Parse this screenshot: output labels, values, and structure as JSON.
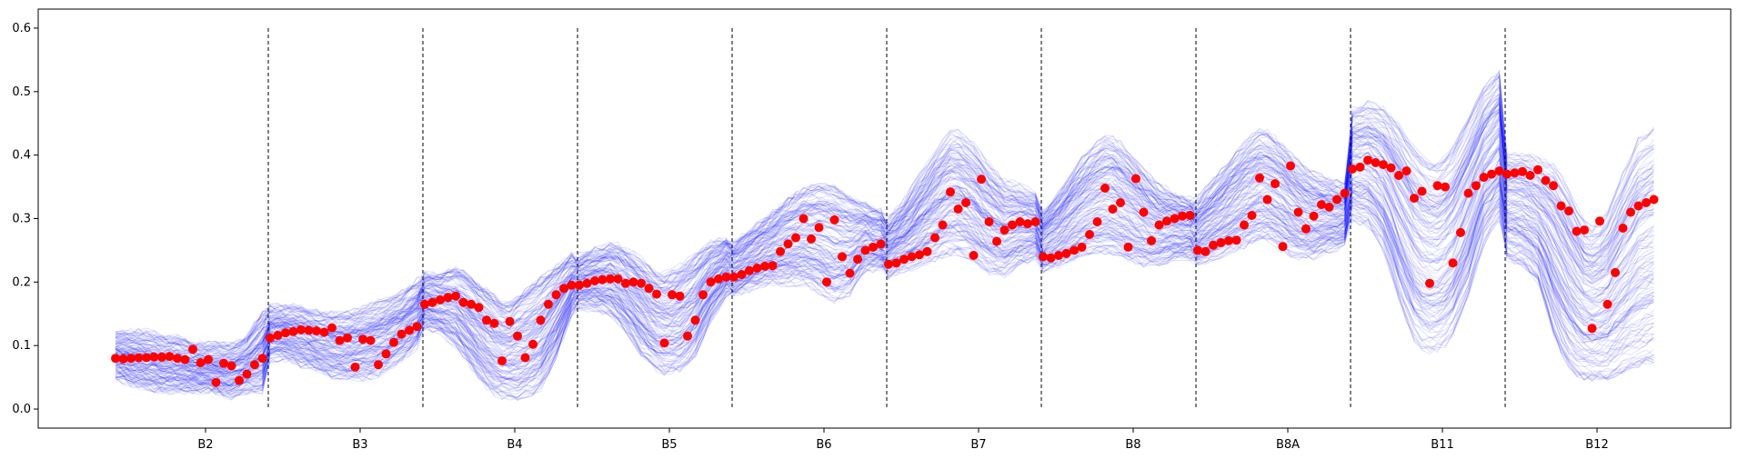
{
  "chart_data": {
    "type": "line",
    "title": "",
    "xlabel": "",
    "ylabel": "",
    "ylim": [
      -0.03,
      0.63
    ],
    "yticks": [
      "0.0",
      "0.1",
      "0.2",
      "0.3",
      "0.4",
      "0.5",
      "0.6"
    ],
    "bands": [
      "B2",
      "B3",
      "B4",
      "B5",
      "B6",
      "B7",
      "B8",
      "B8A",
      "B11",
      "B12"
    ],
    "points_per_band": 20,
    "separators_y": [
      0,
      0.6
    ],
    "grid": false,
    "legend": "none",
    "colors": {
      "ensemble": "#0000ff",
      "observed": "#ff0000",
      "separator": "#000000",
      "axes": "#000000"
    },
    "ensemble": {
      "count": 140,
      "opacity": 0.12,
      "envelope": [
        {
          "band": "B2",
          "lower": [
            0.05,
            0.04,
            0.035,
            0.03,
            0.03,
            0.03,
            0.03,
            0.02,
            0.03,
            0.03
          ],
          "upper": [
            0.12,
            0.12,
            0.12,
            0.11,
            0.11,
            0.1,
            0.1,
            0.1,
            0.11,
            0.15
          ]
        },
        {
          "band": "B3",
          "lower": [
            0.08,
            0.08,
            0.07,
            0.06,
            0.05,
            0.05,
            0.05,
            0.06,
            0.08,
            0.1
          ],
          "upper": [
            0.16,
            0.16,
            0.16,
            0.15,
            0.15,
            0.15,
            0.16,
            0.17,
            0.18,
            0.2
          ]
        },
        {
          "band": "B4",
          "lower": [
            0.13,
            0.12,
            0.1,
            0.06,
            0.03,
            0.02,
            0.02,
            0.03,
            0.08,
            0.15
          ],
          "upper": [
            0.21,
            0.21,
            0.22,
            0.2,
            0.18,
            0.16,
            0.18,
            0.2,
            0.22,
            0.24
          ]
        },
        {
          "band": "B5",
          "lower": [
            0.16,
            0.16,
            0.15,
            0.12,
            0.08,
            0.06,
            0.06,
            0.08,
            0.14,
            0.18
          ],
          "upper": [
            0.24,
            0.25,
            0.26,
            0.25,
            0.23,
            0.21,
            0.22,
            0.24,
            0.26,
            0.27
          ]
        },
        {
          "band": "B6",
          "lower": [
            0.18,
            0.19,
            0.2,
            0.2,
            0.2,
            0.19,
            0.17,
            0.18,
            0.22,
            0.22
          ],
          "upper": [
            0.26,
            0.28,
            0.3,
            0.32,
            0.34,
            0.35,
            0.35,
            0.33,
            0.32,
            0.31
          ]
        },
        {
          "band": "B7",
          "lower": [
            0.21,
            0.22,
            0.23,
            0.24,
            0.25,
            0.24,
            0.22,
            0.21,
            0.23,
            0.24
          ],
          "upper": [
            0.3,
            0.33,
            0.37,
            0.41,
            0.44,
            0.42,
            0.39,
            0.36,
            0.35,
            0.34
          ]
        },
        {
          "band": "B8",
          "lower": [
            0.22,
            0.23,
            0.24,
            0.25,
            0.25,
            0.24,
            0.23,
            0.23,
            0.24,
            0.24
          ],
          "upper": [
            0.31,
            0.34,
            0.38,
            0.41,
            0.43,
            0.41,
            0.38,
            0.35,
            0.34,
            0.33
          ]
        },
        {
          "band": "B8A",
          "lower": [
            0.23,
            0.24,
            0.25,
            0.26,
            0.27,
            0.26,
            0.24,
            0.24,
            0.25,
            0.26
          ],
          "upper": [
            0.33,
            0.36,
            0.39,
            0.42,
            0.44,
            0.42,
            0.39,
            0.37,
            0.36,
            0.35
          ]
        },
        {
          "band": "B11",
          "lower": [
            0.3,
            0.29,
            0.25,
            0.16,
            0.1,
            0.09,
            0.11,
            0.17,
            0.26,
            0.3
          ],
          "upper": [
            0.47,
            0.48,
            0.47,
            0.44,
            0.4,
            0.38,
            0.4,
            0.45,
            0.5,
            0.53
          ]
        },
        {
          "band": "B12",
          "lower": [
            0.24,
            0.23,
            0.2,
            0.11,
            0.06,
            0.05,
            0.05,
            0.06,
            0.07,
            0.08
          ],
          "upper": [
            0.4,
            0.4,
            0.39,
            0.38,
            0.33,
            0.28,
            0.3,
            0.36,
            0.42,
            0.44
          ]
        }
      ]
    },
    "observed": [
      {
        "band": "B2",
        "values": [
          0.08,
          0.079,
          0.08,
          0.081,
          0.081,
          0.082,
          0.082,
          0.083,
          0.08,
          0.078,
          0.094,
          0.073,
          0.078,
          0.042,
          0.072,
          0.068,
          0.045,
          0.055,
          0.07,
          0.08
        ]
      },
      {
        "band": "B3",
        "values": [
          0.112,
          0.116,
          0.12,
          0.122,
          0.125,
          0.124,
          0.123,
          0.121,
          0.128,
          0.108,
          0.112,
          0.066,
          0.11,
          0.108,
          0.07,
          0.087,
          0.105,
          0.118,
          0.124,
          0.13
        ]
      },
      {
        "band": "B4",
        "values": [
          0.165,
          0.168,
          0.172,
          0.176,
          0.178,
          0.168,
          0.165,
          0.16,
          0.14,
          0.135,
          0.076,
          0.138,
          0.115,
          0.081,
          0.102,
          0.14,
          0.165,
          0.18,
          0.19,
          0.195
        ]
      },
      {
        "band": "B5",
        "values": [
          0.195,
          0.198,
          0.202,
          0.204,
          0.205,
          0.205,
          0.198,
          0.2,
          0.198,
          0.19,
          0.181,
          0.104,
          0.18,
          0.178,
          0.115,
          0.14,
          0.18,
          0.2,
          0.205,
          0.208
        ]
      },
      {
        "band": "B6",
        "values": [
          0.208,
          0.212,
          0.218,
          0.222,
          0.225,
          0.226,
          0.248,
          0.26,
          0.27,
          0.3,
          0.268,
          0.286,
          0.2,
          0.298,
          0.24,
          0.214,
          0.236,
          0.25,
          0.255,
          0.26
        ]
      },
      {
        "band": "B7",
        "values": [
          0.228,
          0.23,
          0.236,
          0.24,
          0.243,
          0.248,
          0.27,
          0.29,
          0.342,
          0.315,
          0.325,
          0.242,
          0.362,
          0.295,
          0.264,
          0.282,
          0.29,
          0.295,
          0.292,
          0.295
        ]
      },
      {
        "band": "B8",
        "values": [
          0.24,
          0.238,
          0.242,
          0.245,
          0.25,
          0.255,
          0.275,
          0.295,
          0.348,
          0.315,
          0.325,
          0.255,
          0.363,
          0.31,
          0.265,
          0.29,
          0.296,
          0.3,
          0.304,
          0.305
        ]
      },
      {
        "band": "B8A",
        "values": [
          0.25,
          0.248,
          0.258,
          0.262,
          0.265,
          0.266,
          0.29,
          0.305,
          0.364,
          0.33,
          0.355,
          0.256,
          0.383,
          0.31,
          0.284,
          0.304,
          0.322,
          0.318,
          0.33,
          0.34
        ]
      },
      {
        "band": "B11",
        "values": [
          0.378,
          0.381,
          0.392,
          0.388,
          0.385,
          0.38,
          0.368,
          0.375,
          0.332,
          0.343,
          0.198,
          0.352,
          0.35,
          0.23,
          0.278,
          0.34,
          0.352,
          0.365,
          0.37,
          0.375
        ]
      },
      {
        "band": "B12",
        "values": [
          0.37,
          0.372,
          0.374,
          0.368,
          0.377,
          0.36,
          0.352,
          0.32,
          0.312,
          0.28,
          0.282,
          0.127,
          0.296,
          0.165,
          0.215,
          0.285,
          0.31,
          0.32,
          0.325,
          0.33
        ]
      }
    ]
  }
}
